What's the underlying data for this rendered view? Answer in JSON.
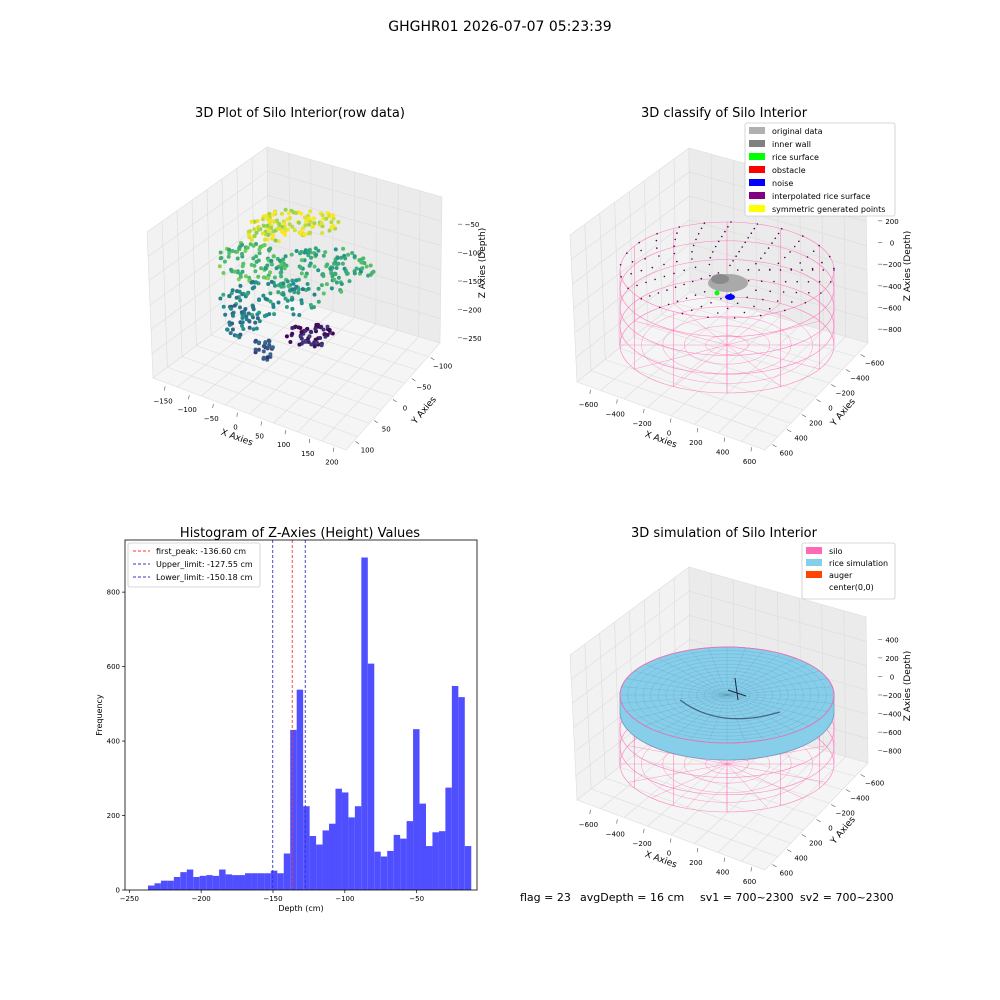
{
  "suptitle": "GHGHR01 2026-07-07 05:23:39",
  "footer": {
    "flag": "flag = 23",
    "avg_depth": "avgDepth = 16 cm",
    "sv1": "sv1 = 700~2300",
    "sv2": "sv2 = 700~2300"
  },
  "colors": {
    "hist_bar": "#4b4bff",
    "peak_line": "#ff3333",
    "limit_line": "#3333cc",
    "silo": "#ff69b4",
    "rice": "#87ceeb",
    "auger": "#ff4500",
    "grey_point": "#a9a9a9"
  },
  "chart_data": [
    {
      "type": "scatter",
      "panel": "raw",
      "title": "3D Plot of Silo Interior(row data)",
      "xlabel": "X Axies",
      "ylabel": "Y Axies",
      "zlabel": "Z Axies (Depth)",
      "x_ticks": [
        "−150",
        "−100",
        "−50",
        "0",
        "50",
        "100",
        "150",
        "200"
      ],
      "y_ticks": [
        "100",
        "50",
        "0",
        "−50",
        "−100"
      ],
      "z_ticks": [
        "−50",
        "−100",
        "−150",
        "−200",
        "−250"
      ],
      "xlim": [
        -160,
        210
      ],
      "ylim": [
        -120,
        120
      ],
      "zlim": [
        -270,
        -30
      ],
      "colormap": "viridis"
    },
    {
      "type": "scatter",
      "panel": "classify",
      "title": "3D classify of Silo Interior",
      "xlabel": "X Axies",
      "ylabel": "Y Axies",
      "zlabel": "Z Axies (Depth)",
      "x_ticks": [
        "−600",
        "−400",
        "−200",
        "0",
        "200",
        "400",
        "600"
      ],
      "y_ticks": [
        "600",
        "400",
        "200",
        "0",
        "−200",
        "−400",
        "−600"
      ],
      "z_ticks": [
        "200",
        "0",
        "−200",
        "−400",
        "−600",
        "−800"
      ],
      "legend_position": "top-right",
      "legend": [
        {
          "label": "original data",
          "color": "#b0b0b0"
        },
        {
          "label": "inner wall",
          "color": "#808080"
        },
        {
          "label": "rice surface",
          "color": "#00ff00"
        },
        {
          "label": "obstacle",
          "color": "#ff0000"
        },
        {
          "label": "noise",
          "color": "#0000ff"
        },
        {
          "label": "interpolated rice surface",
          "color": "#800080"
        },
        {
          "label": "symmetric generated points",
          "color": "#ffff00"
        }
      ]
    },
    {
      "type": "bar",
      "panel": "histogram",
      "title": "Histogram of Z-Axies (Height) Values",
      "xlabel": "Depth (cm)",
      "ylabel": "Frequency",
      "xlim": [
        -253,
        -8
      ],
      "ylim": [
        0,
        940
      ],
      "x_ticks": [
        -250,
        -200,
        -150,
        -100,
        -50
      ],
      "y_ticks": [
        0,
        200,
        400,
        600,
        800
      ],
      "bin_width": 4.5,
      "bins_start": -237,
      "values": [
        12,
        18,
        25,
        25,
        35,
        48,
        55,
        35,
        38,
        40,
        38,
        55,
        42,
        40,
        40,
        45,
        45,
        45,
        45,
        52,
        45,
        98,
        430,
        538,
        225,
        145,
        122,
        160,
        178,
        272,
        262,
        195,
        225,
        893,
        608,
        103,
        90,
        105,
        148,
        138,
        185,
        432,
        232,
        118,
        155,
        158,
        275,
        548,
        518,
        118
      ],
      "lines": [
        {
          "label": "first_peak: -136.60 cm",
          "x": -136.6,
          "color": "#ff3333"
        },
        {
          "label": "Upper_limit: -127.55 cm",
          "x": -127.55,
          "color": "#3333cc"
        },
        {
          "label": "Lower_limit: -150.18 cm",
          "x": -150.18,
          "color": "#3333cc"
        }
      ],
      "legend_position": "top-left"
    },
    {
      "type": "surface",
      "panel": "simulation",
      "title": "3D simulation of Silo Interior",
      "xlabel": "X Axies",
      "ylabel": "Y Axies",
      "zlabel": "Z Axies (Depth)",
      "x_ticks": [
        "−600",
        "−400",
        "−200",
        "0",
        "200",
        "400",
        "600"
      ],
      "y_ticks": [
        "600",
        "400",
        "200",
        "0",
        "−200",
        "−400",
        "−600"
      ],
      "z_ticks": [
        "400",
        "200",
        "0",
        "−200",
        "−400",
        "−600",
        "−800"
      ],
      "legend_position": "top-right",
      "legend": [
        {
          "label": "silo",
          "color": "#ff69b4"
        },
        {
          "label": "rice simulation",
          "color": "#87ceeb"
        },
        {
          "label": "auger",
          "color": "#ff4500"
        },
        {
          "label": "center(0,0)",
          "color": "#ffffff"
        }
      ]
    }
  ]
}
